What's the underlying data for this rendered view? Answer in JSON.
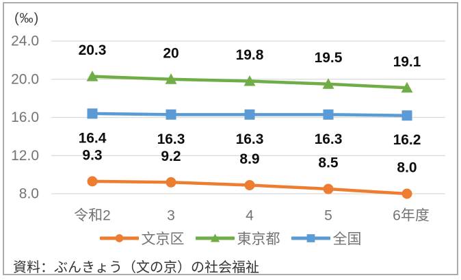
{
  "chart_data": {
    "type": "line",
    "unit_label": "(‰)",
    "categories": [
      "令和2",
      "3",
      "4",
      "5",
      "6年度"
    ],
    "y_ticks": [
      "24.0",
      "20.0",
      "16.0",
      "12.0",
      "8.0"
    ],
    "ylim": [
      8,
      24
    ],
    "grid": true,
    "legend_position": "bottom",
    "series": [
      {
        "name": "文京区",
        "marker": "circle",
        "color": "#ED7D31",
        "values": [
          9.3,
          9.2,
          8.9,
          8.5,
          8.0
        ],
        "labels": [
          "9.3",
          "9.2",
          "8.9",
          "8.5",
          "8.0"
        ],
        "label_position": "above"
      },
      {
        "name": "東京都",
        "marker": "triangle",
        "color": "#70AD47",
        "values": [
          20.3,
          20,
          19.8,
          19.5,
          19.1
        ],
        "labels": [
          "20.3",
          "20",
          "19.8",
          "19.5",
          "19.1"
        ],
        "label_position": "above"
      },
      {
        "name": "全国",
        "marker": "square",
        "color": "#5B9BD5",
        "values": [
          16.4,
          16.3,
          16.3,
          16.3,
          16.2
        ],
        "labels": [
          "16.4",
          "16.3",
          "16.3",
          "16.3",
          "16.2"
        ],
        "label_position": "below"
      }
    ],
    "colors": {
      "gridline": "#D9D9D9",
      "axis_text": "#737373",
      "data_label": "#0d0d0d"
    }
  },
  "source": "資料：ぶんきょう（文の京）の社会福祉"
}
